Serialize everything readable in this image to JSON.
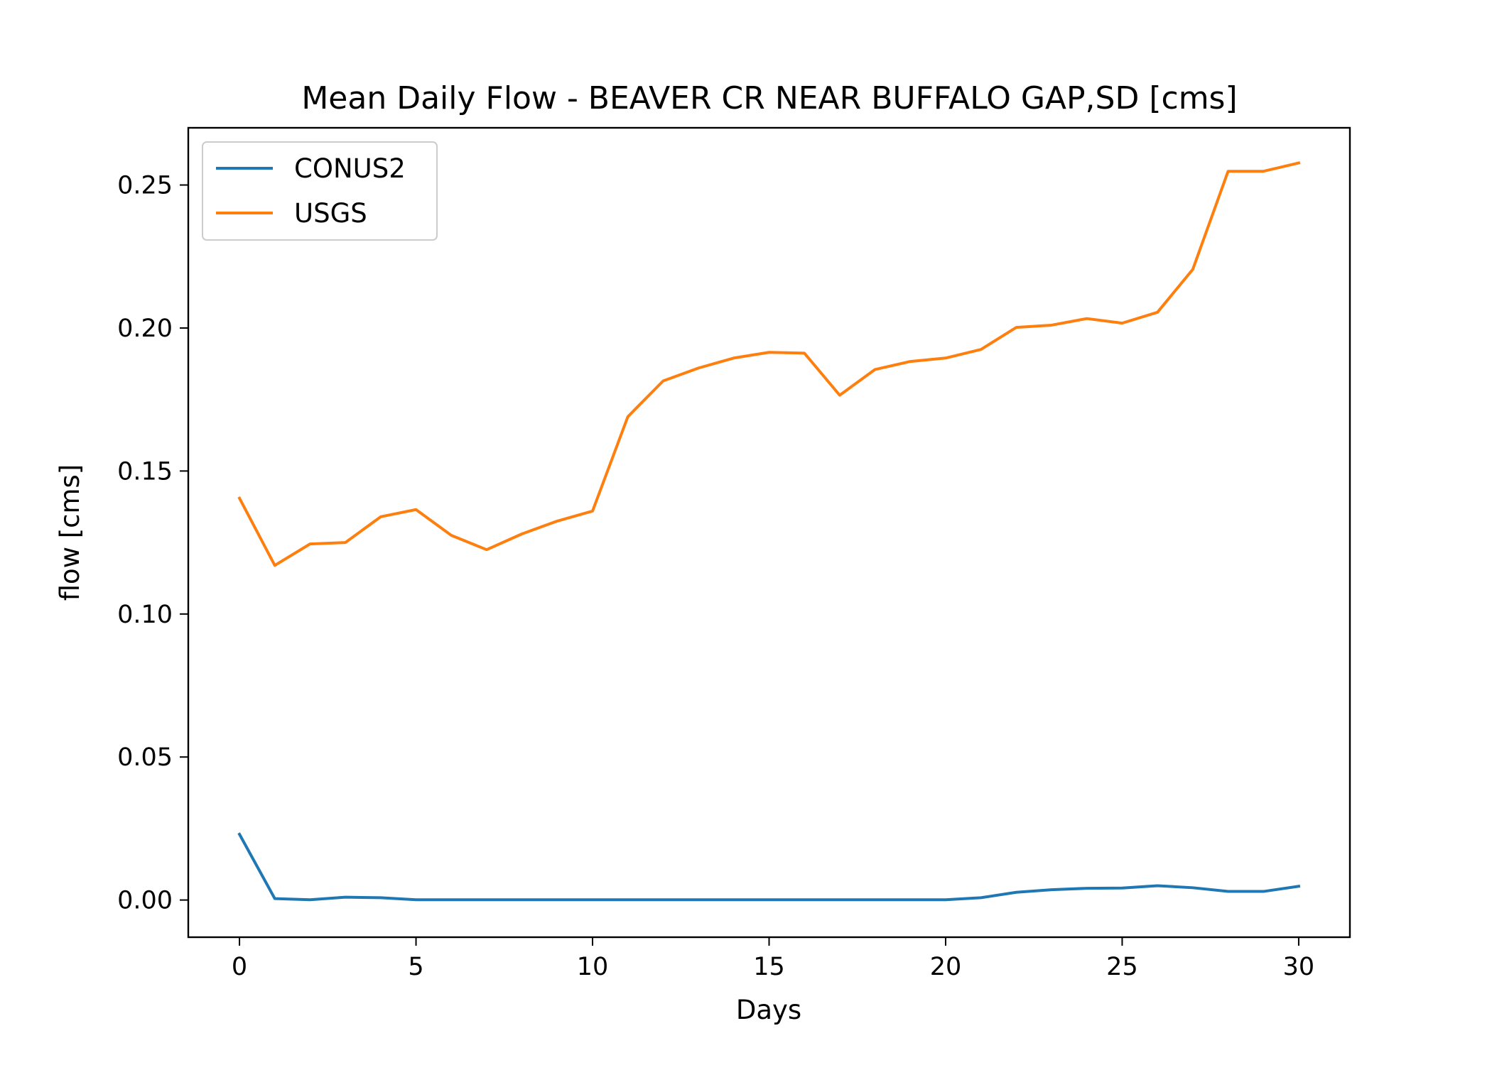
{
  "chart_data": {
    "type": "line",
    "title": "Mean Daily Flow - BEAVER CR NEAR BUFFALO GAP,SD [cms]",
    "xlabel": "Days",
    "ylabel": "flow [cms]",
    "xlim": [
      -1.45,
      31.45
    ],
    "ylim": [
      -0.013,
      0.27
    ],
    "xticks": [
      0,
      5,
      10,
      15,
      20,
      25,
      30
    ],
    "xtick_labels": [
      "0",
      "5",
      "10",
      "15",
      "20",
      "25",
      "30"
    ],
    "yticks": [
      0.0,
      0.05,
      0.1,
      0.15,
      0.2,
      0.25
    ],
    "ytick_labels": [
      "0.00",
      "0.05",
      "0.10",
      "0.15",
      "0.20",
      "0.25"
    ],
    "grid": false,
    "legend_position": "top-left",
    "x": [
      0,
      1,
      2,
      3,
      4,
      5,
      6,
      7,
      8,
      9,
      10,
      11,
      12,
      13,
      14,
      15,
      16,
      17,
      18,
      19,
      20,
      21,
      22,
      23,
      24,
      25,
      26,
      27,
      28,
      29,
      30
    ],
    "series": [
      {
        "name": "CONUS2",
        "color": "#1f77b4",
        "values": [
          0.023,
          0.0005,
          0.0001,
          0.001,
          0.0008,
          0.0001,
          0.0001,
          0.0001,
          0.0001,
          0.0001,
          0.0001,
          0.0001,
          0.0001,
          0.0001,
          0.0001,
          0.0001,
          0.0001,
          0.0001,
          0.0001,
          0.0001,
          0.0001,
          0.0008,
          0.0027,
          0.0036,
          0.0041,
          0.0042,
          0.005,
          0.0043,
          0.003,
          0.003,
          0.0048
        ]
      },
      {
        "name": "USGS",
        "color": "#ff7f0e",
        "values": [
          0.1405,
          0.117,
          0.1245,
          0.125,
          0.134,
          0.1365,
          0.1275,
          0.1225,
          0.128,
          0.1325,
          0.136,
          0.169,
          0.1815,
          0.186,
          0.1895,
          0.1915,
          0.1912,
          0.1765,
          0.1855,
          0.1883,
          0.1895,
          0.1925,
          0.2002,
          0.201,
          0.2033,
          0.2017,
          0.2055,
          0.2205,
          0.2548,
          0.2548,
          0.2577
        ]
      }
    ]
  }
}
